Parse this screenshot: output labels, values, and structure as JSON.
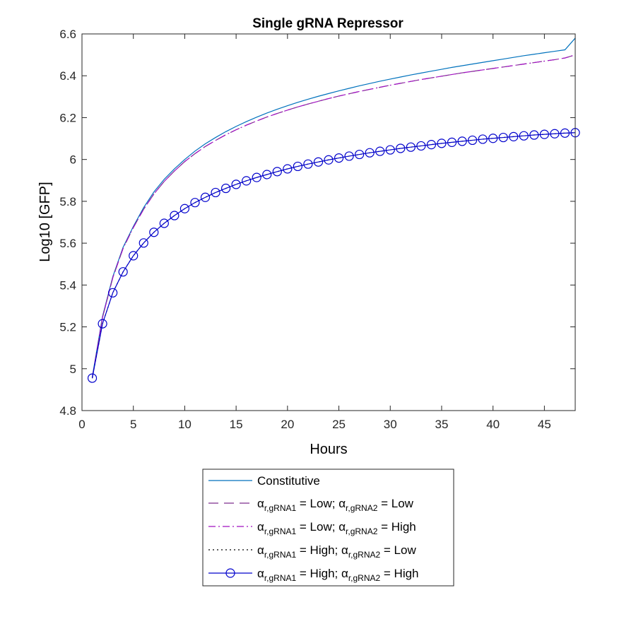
{
  "chart_data": {
    "type": "line",
    "title": "Single gRNA Repressor",
    "xlabel": "Hours",
    "ylabel": "Log10 [GFP]",
    "xlim": [
      0,
      48
    ],
    "ylim": [
      4.8,
      6.6
    ],
    "xticks": [
      "0",
      "5",
      "10",
      "15",
      "20",
      "25",
      "30",
      "35",
      "40",
      "45"
    ],
    "yticks": [
      "4.8",
      "5",
      "5.2",
      "5.4",
      "5.6",
      "5.8",
      "6",
      "6.2",
      "6.4",
      "6.6"
    ],
    "x": [
      1,
      2,
      3,
      4,
      5,
      6,
      7,
      8,
      9,
      10,
      11,
      12,
      13,
      14,
      15,
      16,
      17,
      18,
      19,
      20,
      21,
      22,
      23,
      24,
      25,
      26,
      27,
      28,
      29,
      30,
      31,
      32,
      33,
      34,
      35,
      36,
      37,
      38,
      39,
      40,
      41,
      42,
      43,
      44,
      45,
      46,
      47,
      48
    ],
    "series": [
      {
        "name": "Constitutive",
        "color": "#0072BD",
        "style": "solid",
        "marker": "none",
        "values": [
          4.96,
          5.25,
          5.44,
          5.58,
          5.68,
          5.77,
          5.845,
          5.905,
          5.955,
          6.0,
          6.04,
          6.075,
          6.105,
          6.133,
          6.158,
          6.181,
          6.202,
          6.222,
          6.24,
          6.257,
          6.273,
          6.288,
          6.302,
          6.315,
          6.328,
          6.34,
          6.352,
          6.363,
          6.374,
          6.384,
          6.394,
          6.404,
          6.413,
          6.422,
          6.431,
          6.44,
          6.448,
          6.456,
          6.464,
          6.472,
          6.48,
          6.488,
          6.496,
          6.503,
          6.51,
          6.517,
          6.524,
          6.58
        ]
      },
      {
        "name": "αr,gRNA1 = Low; αr,gRNA2 = Low",
        "legend_parts": {
          "alpha": "α",
          "sub1": "r,gRNA1",
          "mid": " = Low; ",
          "sub2": "r,gRNA2",
          "end": " = Low"
        },
        "color": "#7E2F8E",
        "style": "dashed",
        "marker": "none",
        "values": [
          4.955,
          5.245,
          5.435,
          5.575,
          5.675,
          5.762,
          5.835,
          5.895,
          5.945,
          5.99,
          6.028,
          6.062,
          6.091,
          6.118,
          6.142,
          6.164,
          6.184,
          6.203,
          6.22,
          6.236,
          6.251,
          6.265,
          6.278,
          6.291,
          6.303,
          6.314,
          6.325,
          6.335,
          6.345,
          6.355,
          6.364,
          6.373,
          6.382,
          6.39,
          6.398,
          6.406,
          6.414,
          6.421,
          6.428,
          6.435,
          6.442,
          6.449,
          6.456,
          6.463,
          6.47,
          6.477,
          6.485,
          6.5
        ]
      },
      {
        "name": "αr,gRNA1 = Low; αr,gRNA2 = High",
        "legend_parts": {
          "alpha": "α",
          "sub1": "r,gRNA1",
          "mid": " = Low; ",
          "sub2": "r,gRNA2",
          "end": " = High"
        },
        "color": "#A010C0",
        "style": "dashdot",
        "marker": "none",
        "values": [
          4.955,
          5.245,
          5.435,
          5.575,
          5.675,
          5.762,
          5.835,
          5.895,
          5.945,
          5.99,
          6.028,
          6.062,
          6.091,
          6.118,
          6.142,
          6.164,
          6.184,
          6.203,
          6.22,
          6.236,
          6.251,
          6.265,
          6.278,
          6.291,
          6.303,
          6.314,
          6.325,
          6.335,
          6.345,
          6.355,
          6.364,
          6.373,
          6.382,
          6.39,
          6.398,
          6.406,
          6.414,
          6.421,
          6.428,
          6.435,
          6.442,
          6.449,
          6.456,
          6.463,
          6.47,
          6.477,
          6.485,
          6.5
        ]
      },
      {
        "name": "αr,gRNA1 = High; αr,gRNA2 = Low",
        "legend_parts": {
          "alpha": "α",
          "sub1": "r,gRNA1",
          "mid": " = High; ",
          "sub2": "r,gRNA2",
          "end": " = Low"
        },
        "color": "#000000",
        "style": "dotted",
        "marker": "none",
        "values": [
          4.955,
          5.215,
          5.363,
          5.463,
          5.54,
          5.601,
          5.652,
          5.695,
          5.732,
          5.765,
          5.794,
          5.819,
          5.842,
          5.862,
          5.881,
          5.898,
          5.914,
          5.928,
          5.942,
          5.955,
          5.967,
          5.978,
          5.988,
          5.998,
          6.007,
          6.016,
          6.024,
          6.032,
          6.039,
          6.046,
          6.053,
          6.059,
          6.065,
          6.071,
          6.077,
          6.082,
          6.087,
          6.092,
          6.097,
          6.101,
          6.105,
          6.109,
          6.113,
          6.117,
          6.12,
          6.123,
          6.126,
          6.128
        ]
      },
      {
        "name": "αr,gRNA1 = High; αr,gRNA2 = High",
        "legend_parts": {
          "alpha": "α",
          "sub1": "r,gRNA1",
          "mid": " = High; ",
          "sub2": "r,gRNA2",
          "end": " = High"
        },
        "color": "#0000CC",
        "style": "solid",
        "marker": "circle",
        "values": [
          4.955,
          5.215,
          5.363,
          5.463,
          5.54,
          5.601,
          5.652,
          5.695,
          5.732,
          5.765,
          5.794,
          5.819,
          5.842,
          5.862,
          5.881,
          5.898,
          5.914,
          5.928,
          5.942,
          5.955,
          5.967,
          5.978,
          5.988,
          5.998,
          6.007,
          6.016,
          6.024,
          6.032,
          6.039,
          6.046,
          6.053,
          6.059,
          6.065,
          6.071,
          6.077,
          6.082,
          6.087,
          6.092,
          6.097,
          6.101,
          6.105,
          6.109,
          6.113,
          6.117,
          6.12,
          6.123,
          6.126,
          6.128
        ]
      }
    ],
    "legend_position": "below"
  }
}
